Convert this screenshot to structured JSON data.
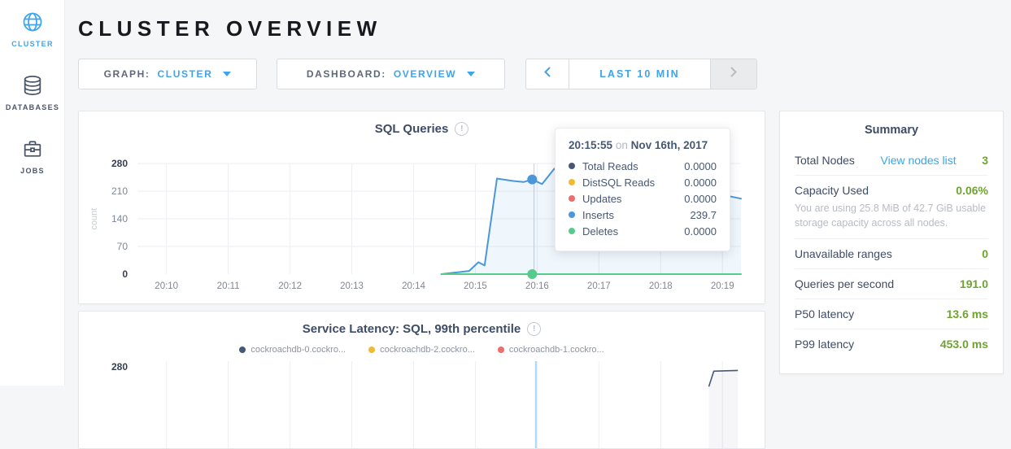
{
  "colors": {
    "accent": "#3da4ed",
    "green": "#6ea42e",
    "navy": "#475872",
    "grid": "#eceef1",
    "tick": "#7e8796",
    "tick_dark": "#343e52",
    "tick_faint": "#c6ccd4",
    "crosshair": "#c9cdd2",
    "crosshair_blue": "#a9d7f8"
  },
  "sidebar": {
    "items": [
      {
        "label": "CLUSTER",
        "icon": "globe-icon",
        "active": true
      },
      {
        "label": "DATABASES",
        "icon": "database-icon",
        "active": false
      },
      {
        "label": "JOBS",
        "icon": "briefcase-icon",
        "active": false
      }
    ]
  },
  "header": {
    "title": "CLUSTER OVERVIEW"
  },
  "controls": {
    "graph": {
      "label": "GRAPH:",
      "value": "CLUSTER"
    },
    "dashboard": {
      "label": "DASHBOARD:",
      "value": "OVERVIEW"
    },
    "timeframe": {
      "label": "LAST 10 MIN"
    }
  },
  "chart_data": [
    {
      "type": "line",
      "title": "SQL Queries",
      "xlabel": "",
      "ylabel": "count",
      "ylim": [
        0,
        280
      ],
      "yticks": [
        0,
        70,
        140,
        210,
        280
      ],
      "grid": true,
      "x_unit": "minutes after 20:10",
      "xlim": [
        -0.47,
        9.3
      ],
      "xticks": [
        {
          "t": 0,
          "label": "20:10"
        },
        {
          "t": 1,
          "label": "20:11"
        },
        {
          "t": 2,
          "label": "20:12"
        },
        {
          "t": 3,
          "label": "20:13"
        },
        {
          "t": 4,
          "label": "20:14"
        },
        {
          "t": 5,
          "label": "20:15"
        },
        {
          "t": 6,
          "label": "20:16"
        },
        {
          "t": 7,
          "label": "20:17"
        },
        {
          "t": 8,
          "label": "20:18"
        },
        {
          "t": 9,
          "label": "20:19"
        }
      ],
      "crosshair_t": 5.95,
      "series": [
        {
          "name": "Total Reads",
          "color": "#475872",
          "values": []
        },
        {
          "name": "DistSQL Reads",
          "color": "#eebb33",
          "values": []
        },
        {
          "name": "Updates",
          "color": "#ed6e6e",
          "values": []
        },
        {
          "name": "Inserts",
          "color": "#4a97dc",
          "area": true,
          "values": [
            [
              4.45,
              0
            ],
            [
              4.9,
              8
            ],
            [
              5.05,
              30
            ],
            [
              5.15,
              22
            ],
            [
              5.35,
              242
            ],
            [
              5.6,
              236
            ],
            [
              5.78,
              233
            ],
            [
              5.92,
              239.7
            ],
            [
              6.08,
              228
            ],
            [
              6.28,
              267
            ],
            [
              6.5,
              224
            ],
            [
              6.9,
              218
            ],
            [
              7.4,
              222
            ],
            [
              7.9,
              214
            ],
            [
              8.4,
              217
            ],
            [
              8.9,
              204
            ],
            [
              9.3,
              191
            ]
          ],
          "marker": [
            5.92,
            239.7
          ]
        },
        {
          "name": "Deletes",
          "color": "#55cb8c",
          "values": [
            [
              4.45,
              0
            ],
            [
              9.3,
              0
            ]
          ],
          "marker": [
            5.92,
            0
          ]
        }
      ]
    },
    {
      "type": "line",
      "title": "Service Latency: SQL, 99th percentile",
      "ylim": [
        0,
        280
      ],
      "ytick_top": "280",
      "xlim": [
        -0.47,
        9.3
      ],
      "xtick_ts": [
        0,
        1,
        2,
        3,
        4,
        5,
        6,
        7,
        8,
        9
      ],
      "crosshair_t": 5.98,
      "legend": [
        {
          "name": "cockroachdb-0.cockro...",
          "color": "#475872"
        },
        {
          "name": "cockroachdb-2.cockro...",
          "color": "#eebb33"
        },
        {
          "name": "cockroachdb-1.cockro...",
          "color": "#ed6e6e"
        }
      ],
      "series": [
        {
          "name": "cockroachdb-0.cockro...",
          "color": "#475872",
          "area": true,
          "values": [
            [
              8.78,
              230
            ],
            [
              8.86,
              269
            ],
            [
              9.25,
              271
            ]
          ]
        }
      ],
      "note": "chart partially cut off at bottom of viewport"
    }
  ],
  "tooltip": {
    "time": "20:15:55",
    "on": "on",
    "date": "Nov 16th, 2017",
    "rows": [
      {
        "label": "Total Reads",
        "value": "0.0000"
      },
      {
        "label": "DistSQL Reads",
        "value": "0.0000"
      },
      {
        "label": "Updates",
        "value": "0.0000"
      },
      {
        "label": "Inserts",
        "value": "239.7"
      },
      {
        "label": "Deletes",
        "value": "0.0000"
      }
    ]
  },
  "summary": {
    "title": "Summary",
    "total_nodes": {
      "label": "Total Nodes",
      "link": "View nodes list",
      "value": "3"
    },
    "capacity": {
      "label": "Capacity Used",
      "value": "0.06%",
      "note": "You are using 25.8 MiB of 42.7 GiB usable storage capacity across all nodes."
    },
    "rows": [
      {
        "label": "Unavailable ranges",
        "value": "0"
      },
      {
        "label": "Queries per second",
        "value": "191.0"
      },
      {
        "label": "P50 latency",
        "value": "13.6 ms"
      },
      {
        "label": "P99 latency",
        "value": "453.0 ms"
      }
    ]
  }
}
